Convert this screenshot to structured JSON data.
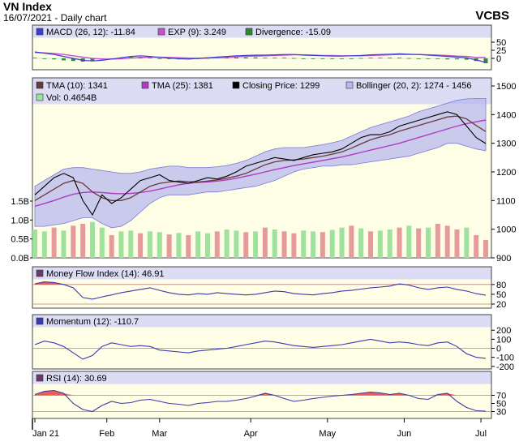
{
  "header": {
    "title": "VN Index",
    "subtitle": "16/07/2021 - Daily chart",
    "source": "VCBS"
  },
  "colors": {
    "panel_bg": "#fefee6",
    "legend_bg": "#dcdcf4",
    "frame": "#444444",
    "macd_line": "#3d3dd4",
    "exp_line": "#c055c8",
    "divergence": "#2f8a2f",
    "tma10": "#6a3a3a",
    "tma25": "#b03cc0",
    "close": "#000000",
    "bollinger_fill": "#b8b8ee",
    "bollinger_edge": "#7a7ad8",
    "vol_up": "#9ee29e",
    "vol_down": "#e89a9a",
    "mfi_line": "#3a3aa8",
    "mfi_fill": "#e84a4a",
    "mom_line": "#3a3ab4",
    "rsi_line": "#3a3aa8",
    "rsi_fill": "#e84a4a"
  },
  "chart_data": [
    {
      "type": "line",
      "panel": "macd",
      "legend": [
        {
          "label": "MACD (26, 12): -11.84",
          "swatch": "#3d3dd4"
        },
        {
          "label": "EXP (9): 3.249",
          "swatch": "#c055c8"
        },
        {
          "label": "Divergence: -15.09",
          "swatch": "#2f8a2f"
        }
      ],
      "ylim": [
        -30,
        60
      ],
      "yticks": [
        50,
        25,
        0
      ],
      "series": [
        {
          "key": "macd",
          "values": [
            20,
            16,
            12,
            6,
            0,
            -6,
            -8,
            -6,
            -2,
            2,
            6,
            8,
            6,
            3,
            1,
            -1,
            -2,
            0,
            2,
            4,
            6,
            8,
            9,
            10,
            10,
            11,
            12,
            12,
            10,
            9,
            8,
            7,
            7,
            8,
            9,
            11,
            12,
            13,
            14,
            13,
            12,
            10,
            8,
            6,
            4,
            2,
            -5,
            -12
          ]
        },
        {
          "key": "exp",
          "values": [
            18,
            17,
            15,
            12,
            8,
            4,
            0,
            -2,
            -2,
            -1,
            1,
            3,
            4,
            4,
            3,
            2,
            1,
            0,
            1,
            2,
            3,
            5,
            6,
            7,
            8,
            9,
            10,
            11,
            11,
            10,
            9,
            9,
            8,
            8,
            8,
            9,
            10,
            11,
            12,
            12,
            12,
            11,
            10,
            9,
            7,
            6,
            3,
            3
          ]
        },
        {
          "key": "divergence",
          "values": [
            2,
            -1,
            -3,
            -6,
            -8,
            -10,
            -8,
            -4,
            0,
            3,
            5,
            5,
            2,
            -1,
            -2,
            -3,
            -3,
            0,
            1,
            2,
            3,
            3,
            3,
            3,
            2,
            2,
            2,
            1,
            -1,
            -1,
            -1,
            -2,
            -1,
            0,
            1,
            2,
            2,
            2,
            2,
            1,
            0,
            -1,
            -2,
            -3,
            -3,
            -4,
            -8,
            -15
          ]
        }
      ]
    },
    {
      "type": "line",
      "panel": "price",
      "legend": [
        {
          "label": "TMA (10): 1341",
          "swatch": "#6a3a3a"
        },
        {
          "label": "TMA (25): 1381",
          "swatch": "#b03cc0"
        },
        {
          "label": "Closing Price: 1299",
          "swatch": "#000000"
        },
        {
          "label": "Bollinger (20, 2): 1274 - 1456",
          "swatch": "#b8b8ee"
        },
        {
          "label": "Vol: 0.4654B",
          "swatch": "#9ee29e"
        }
      ],
      "ylim": [
        900,
        1500
      ],
      "yticks": [
        1500,
        1400,
        1300,
        1200,
        1100,
        1000,
        900
      ],
      "vol_ylim": [
        0,
        1.5
      ],
      "vol_ticks": [
        {
          "v": 1.5,
          "label": "1.5B"
        },
        {
          "v": 1.0,
          "label": "1.0B"
        },
        {
          "v": 0.5,
          "label": "0.5B"
        },
        {
          "v": 0,
          "label": "0.0B"
        }
      ],
      "series": [
        {
          "key": "close",
          "values": [
            1120,
            1150,
            1180,
            1195,
            1180,
            1100,
            1050,
            1120,
            1090,
            1110,
            1140,
            1170,
            1180,
            1190,
            1170,
            1165,
            1160,
            1170,
            1180,
            1175,
            1185,
            1200,
            1220,
            1230,
            1240,
            1250,
            1245,
            1240,
            1250,
            1260,
            1265,
            1270,
            1280,
            1300,
            1320,
            1330,
            1330,
            1340,
            1360,
            1370,
            1380,
            1390,
            1400,
            1410,
            1400,
            1360,
            1320,
            1299
          ]
        },
        {
          "key": "tma10",
          "values": [
            1100,
            1120,
            1140,
            1160,
            1170,
            1160,
            1130,
            1110,
            1100,
            1100,
            1110,
            1130,
            1150,
            1160,
            1165,
            1168,
            1166,
            1165,
            1168,
            1172,
            1178,
            1185,
            1195,
            1210,
            1225,
            1235,
            1240,
            1242,
            1245,
            1250,
            1255,
            1262,
            1270,
            1283,
            1298,
            1312,
            1322,
            1330,
            1342,
            1352,
            1362,
            1372,
            1382,
            1392,
            1395,
            1385,
            1362,
            1341
          ]
        },
        {
          "key": "tma25",
          "values": [
            1080,
            1090,
            1100,
            1112,
            1122,
            1128,
            1130,
            1128,
            1125,
            1124,
            1125,
            1128,
            1133,
            1140,
            1148,
            1155,
            1160,
            1163,
            1165,
            1168,
            1172,
            1178,
            1185,
            1192,
            1200,
            1208,
            1215,
            1222,
            1228,
            1234,
            1240,
            1246,
            1252,
            1260,
            1268,
            1276,
            1284,
            1292,
            1300,
            1310,
            1320,
            1330,
            1340,
            1350,
            1360,
            1368,
            1375,
            1381
          ]
        },
        {
          "key": "boll_upper",
          "values": [
            1150,
            1170,
            1190,
            1210,
            1215,
            1215,
            1210,
            1205,
            1200,
            1195,
            1195,
            1200,
            1210,
            1215,
            1220,
            1220,
            1215,
            1215,
            1215,
            1218,
            1222,
            1230,
            1240,
            1255,
            1270,
            1280,
            1285,
            1285,
            1285,
            1290,
            1295,
            1302,
            1310,
            1325,
            1340,
            1355,
            1365,
            1375,
            1385,
            1395,
            1410,
            1420,
            1430,
            1440,
            1450,
            1455,
            1456,
            1456
          ]
        },
        {
          "key": "boll_lower",
          "values": [
            1010,
            1010,
            1015,
            1020,
            1030,
            1040,
            1040,
            1020,
            1005,
            1010,
            1030,
            1060,
            1090,
            1110,
            1120,
            1120,
            1120,
            1125,
            1130,
            1130,
            1135,
            1140,
            1145,
            1150,
            1160,
            1170,
            1185,
            1200,
            1210,
            1215,
            1220,
            1220,
            1225,
            1225,
            1230,
            1235,
            1240,
            1245,
            1250,
            1255,
            1265,
            1275,
            1285,
            1300,
            1300,
            1290,
            1280,
            1274
          ]
        },
        {
          "key": "volume",
          "values": [
            0.75,
            0.7,
            0.8,
            0.72,
            0.85,
            0.9,
            0.95,
            0.8,
            0.6,
            0.7,
            0.72,
            0.65,
            0.7,
            0.68,
            0.62,
            0.66,
            0.6,
            0.7,
            0.65,
            0.7,
            0.75,
            0.72,
            0.68,
            0.7,
            0.8,
            0.75,
            0.7,
            0.65,
            0.72,
            0.7,
            0.68,
            0.74,
            0.8,
            0.85,
            0.78,
            0.7,
            0.72,
            0.75,
            0.8,
            0.85,
            0.78,
            0.8,
            0.9,
            0.85,
            0.75,
            0.8,
            0.6,
            0.47
          ]
        },
        {
          "key": "volume_down",
          "values": [
            0,
            0,
            1,
            0,
            1,
            1,
            0,
            0,
            1,
            0,
            0,
            1,
            0,
            0,
            1,
            0,
            1,
            0,
            0,
            1,
            0,
            0,
            1,
            0,
            1,
            0,
            1,
            1,
            0,
            0,
            1,
            0,
            0,
            1,
            0,
            1,
            0,
            0,
            1,
            0,
            1,
            0,
            1,
            1,
            1,
            0,
            1,
            1
          ]
        }
      ]
    },
    {
      "type": "area",
      "panel": "mfi",
      "legend": [
        {
          "label": "Money Flow Index (14): 46.91",
          "swatch": "#6a3a6a"
        }
      ],
      "ylim": [
        10,
        92
      ],
      "yticks": [
        80,
        50,
        20
      ],
      "levels": [
        80,
        20
      ],
      "series": [
        {
          "key": "mfi",
          "values": [
            82,
            88,
            86,
            80,
            70,
            40,
            35,
            42,
            48,
            55,
            60,
            65,
            70,
            62,
            55,
            50,
            48,
            52,
            50,
            55,
            52,
            50,
            48,
            50,
            55,
            60,
            58,
            52,
            50,
            48,
            52,
            55,
            60,
            62,
            66,
            70,
            72,
            75,
            82,
            78,
            70,
            65,
            70,
            72,
            65,
            60,
            52,
            47
          ]
        }
      ]
    },
    {
      "type": "line",
      "panel": "momentum",
      "legend": [
        {
          "label": "Momentum (12): -110.7",
          "swatch": "#3a3ab4"
        }
      ],
      "ylim": [
        -220,
        220
      ],
      "yticks": [
        200,
        100,
        0,
        -100,
        -200
      ],
      "series": [
        {
          "key": "momentum",
          "values": [
            40,
            80,
            60,
            20,
            -50,
            -120,
            -80,
            20,
            60,
            40,
            20,
            30,
            20,
            -20,
            -30,
            -40,
            -50,
            -30,
            -20,
            -10,
            0,
            20,
            40,
            60,
            80,
            70,
            50,
            30,
            20,
            10,
            20,
            30,
            40,
            60,
            80,
            100,
            80,
            60,
            70,
            60,
            40,
            30,
            60,
            70,
            20,
            -60,
            -100,
            -111
          ]
        }
      ]
    },
    {
      "type": "area",
      "panel": "rsi",
      "legend": [
        {
          "label": "RSI (14): 30.69",
          "swatch": "#6a3a6a"
        }
      ],
      "ylim": [
        15,
        95
      ],
      "yticks": [
        70,
        50,
        30
      ],
      "levels": [
        70,
        30
      ],
      "series": [
        {
          "key": "rsi",
          "values": [
            72,
            80,
            82,
            75,
            50,
            35,
            30,
            45,
            55,
            50,
            52,
            58,
            60,
            55,
            50,
            48,
            45,
            50,
            52,
            55,
            55,
            58,
            62,
            68,
            75,
            70,
            62,
            55,
            58,
            62,
            65,
            68,
            70,
            72,
            75,
            78,
            76,
            72,
            75,
            70,
            62,
            60,
            72,
            75,
            55,
            40,
            32,
            31
          ]
        }
      ]
    },
    {
      "type": "axis",
      "panel": "x_axis",
      "months": [
        {
          "label": "Jan 21",
          "i": 0
        },
        {
          "label": "Feb",
          "i": 7.5
        },
        {
          "label": "Mar",
          "i": 13
        },
        {
          "label": "Apr",
          "i": 22.5
        },
        {
          "label": "May",
          "i": 30.5
        },
        {
          "label": "Jun",
          "i": 38.5
        },
        {
          "label": "Jul",
          "i": 46.5
        }
      ]
    }
  ]
}
